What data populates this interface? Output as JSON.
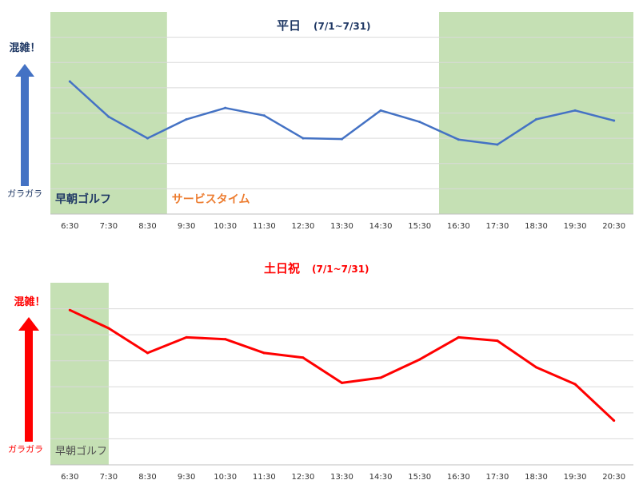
{
  "chart_data": [
    {
      "type": "line",
      "title": "平日",
      "subtitle": "(7/1~7/31)",
      "title_color": "#1f3864",
      "line_color": "#4472c4",
      "indicator_top": "混雑！",
      "indicator_bottom": "ガラガラ",
      "indicator_color": "#4472c4",
      "indicator_text_color": "#1f3864",
      "categories": [
        "6:30",
        "7:30",
        "8:30",
        "9:30",
        "10:30",
        "11:30",
        "12:30",
        "13:30",
        "14:30",
        "15:30",
        "16:30",
        "17:30",
        "18:30",
        "19:30",
        "20:30"
      ],
      "series": [
        {
          "values": [
            5.25,
            3.85,
            3.0,
            3.75,
            4.2,
            3.9,
            3.0,
            2.97,
            4.1,
            3.65,
            2.95,
            2.75,
            3.75,
            4.1,
            3.7
          ]
        }
      ],
      "ylim": [
        0,
        8
      ],
      "grid": true,
      "bands": [
        {
          "label": "早朝ゴルフ",
          "from": "6:30",
          "to": "8:30",
          "fill": "#c5e0b4",
          "label_color": "#1f3864"
        },
        {
          "label": "サービスタイム",
          "from": "9:30",
          "to": "15:30",
          "fill": "#ffffff",
          "label_color": "#ed7d31"
        },
        {
          "label": "",
          "from": "16:30",
          "to": "20:30",
          "fill": "#c5e0b4",
          "label_color": "#1f3864"
        }
      ]
    },
    {
      "type": "line",
      "title": "土日祝",
      "subtitle": "(7/1~7/31)",
      "title_color": "#ff0000",
      "line_color": "#ff0000",
      "indicator_top": "混雑！",
      "indicator_bottom": "ガラガラ",
      "indicator_color": "#ff0000",
      "indicator_text_color": "#ff0000",
      "categories": [
        "6:30",
        "7:30",
        "8:30",
        "9:30",
        "10:30",
        "11:30",
        "12:30",
        "13:30",
        "14:30",
        "15:30",
        "16:30",
        "17:30",
        "18:30",
        "19:30",
        "20:30"
      ],
      "series": [
        {
          "values": [
            5.95,
            5.25,
            4.3,
            4.9,
            4.83,
            4.3,
            4.12,
            3.15,
            3.35,
            4.05,
            4.9,
            4.77,
            3.75,
            3.1,
            1.7
          ]
        }
      ],
      "ylim": [
        0,
        7
      ],
      "grid": true,
      "bands": [
        {
          "label": "早朝ゴルフ",
          "from": "6:30",
          "to": "7:30",
          "fill": "#c5e0b4",
          "label_color": "#4f4f4f"
        }
      ]
    }
  ]
}
